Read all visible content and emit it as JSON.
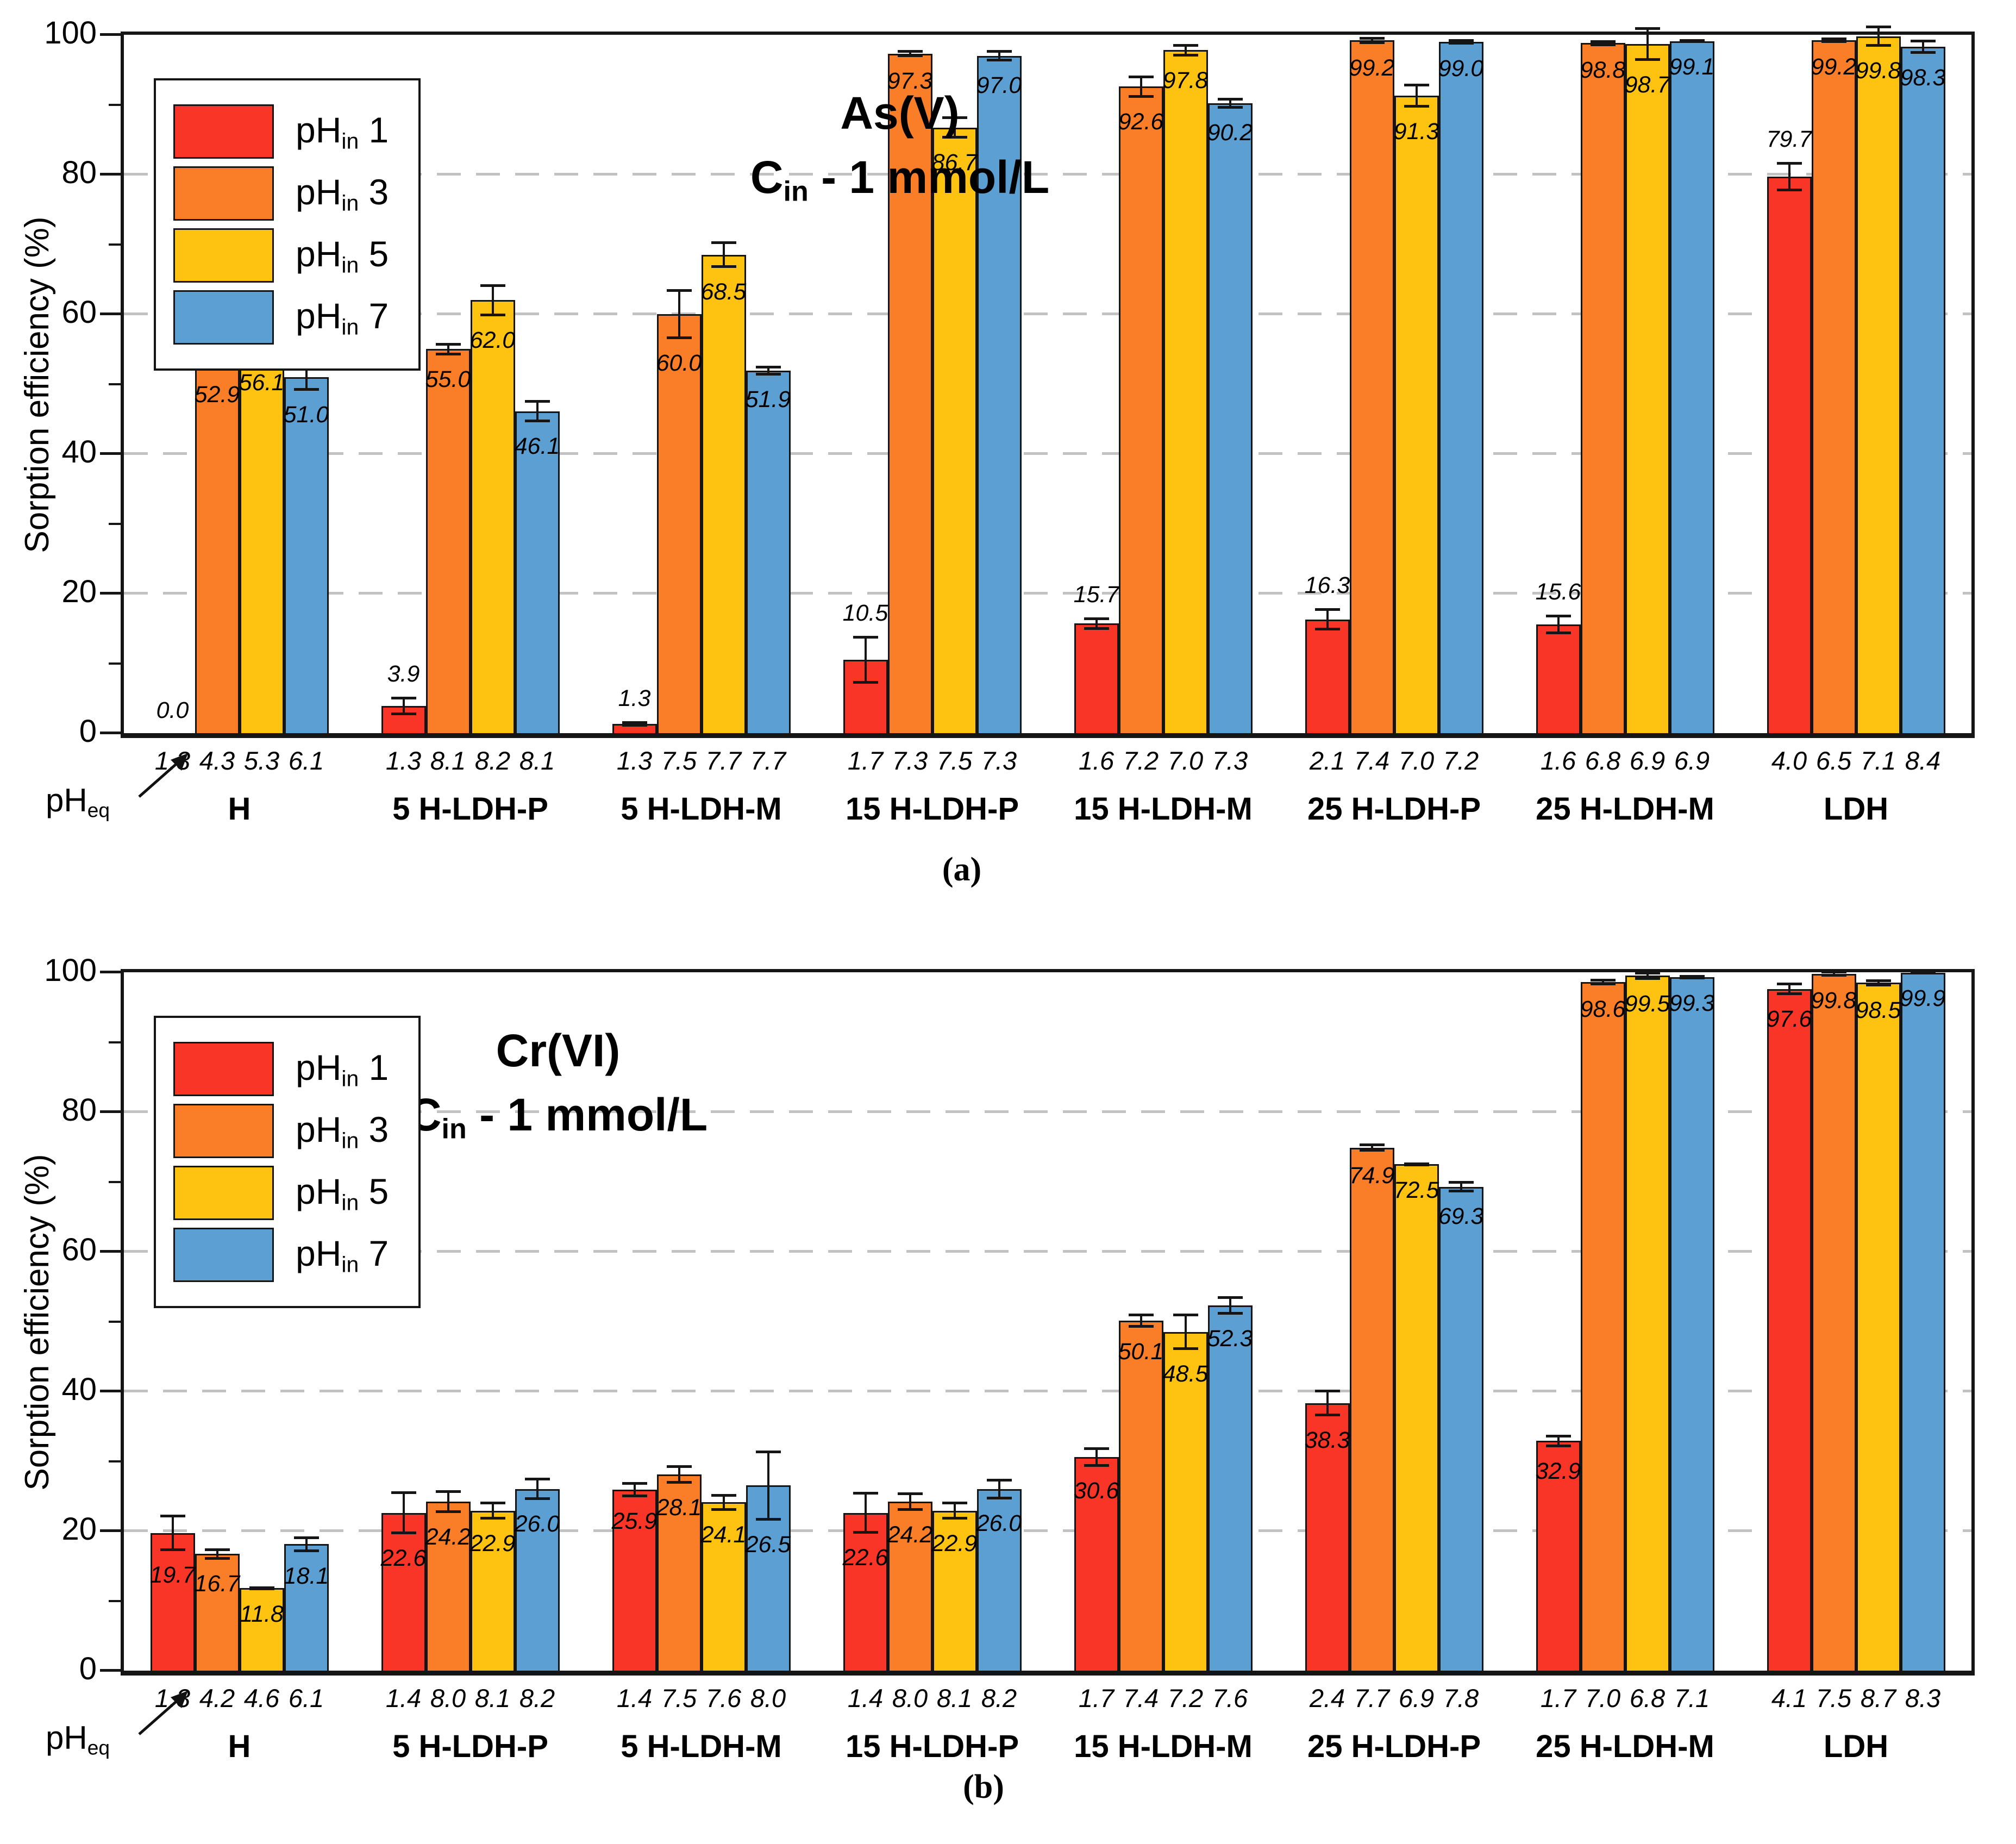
{
  "grid_color": "#C2C2C2",
  "axis_color": "#151515",
  "chart_data": [
    {
      "type": "bar",
      "panel_caption": "(a)",
      "title": "As(V)",
      "subtitle": {
        "pre": "C",
        "sub": "in",
        "post": " - 1 mmol/L"
      },
      "ylabel": "Sorption efficiency (%)",
      "ylim": [
        0,
        100
      ],
      "yticks": [
        0,
        20,
        40,
        60,
        80,
        100
      ],
      "gridlines": [
        20,
        40,
        60,
        80
      ],
      "legend_position": "top-left",
      "value_label_style": "italic",
      "first_series_labels": "above_bars",
      "x_annotation": {
        "pre": "pH",
        "sub": "eq"
      },
      "legend": [
        {
          "name": "pHin 1",
          "pre": "pH",
          "sub": "in",
          "post": " 1",
          "color": "#F93527"
        },
        {
          "name": "pHin 3",
          "pre": "pH",
          "sub": "in",
          "post": " 3",
          "color": "#FA7D28"
        },
        {
          "name": "pHin 5",
          "pre": "pH",
          "sub": "in",
          "post": " 5",
          "color": "#FEC211"
        },
        {
          "name": "pHin 7",
          "pre": "pH",
          "sub": "in",
          "post": " 7",
          "color": "#5B9FD3"
        }
      ],
      "categories": [
        "H",
        "5 H-LDH-P",
        "5 H-LDH-M",
        "15 H-LDH-P",
        "15 H-LDH-M",
        "25 H-LDH-P",
        "25 H-LDH-M",
        "LDH"
      ],
      "groups": [
        {
          "label": "H",
          "bars": [
            {
              "v": 0.0,
              "label": "0.0",
              "err": 0.0,
              "pheq": "1.3"
            },
            {
              "v": 52.9,
              "label": "52.9",
              "err": 1.0,
              "pheq": "4.3"
            },
            {
              "v": 56.1,
              "label": "56.1",
              "err": 2.5,
              "pheq": "5.3"
            },
            {
              "v": 51.0,
              "label": "51.0",
              "err": 2.0,
              "pheq": "6.1"
            }
          ]
        },
        {
          "label": "5 H-LDH-P",
          "bars": [
            {
              "v": 3.9,
              "label": "3.9",
              "err": 1.3,
              "pheq": "1.3"
            },
            {
              "v": 55.0,
              "label": "55.0",
              "err": 0.9,
              "pheq": "8.1"
            },
            {
              "v": 62.0,
              "label": "62.0",
              "err": 2.3,
              "pheq": "8.2"
            },
            {
              "v": 46.1,
              "label": "46.1",
              "err": 1.6,
              "pheq": "8.1"
            }
          ]
        },
        {
          "label": "5 H-LDH-M",
          "bars": [
            {
              "v": 1.3,
              "label": "1.3",
              "err": 0.4,
              "pheq": "1.3"
            },
            {
              "v": 60.0,
              "label": "60.0",
              "err": 3.6,
              "pheq": "7.5"
            },
            {
              "v": 68.5,
              "label": "68.5",
              "err": 1.9,
              "pheq": "7.7"
            },
            {
              "v": 51.9,
              "label": "51.9",
              "err": 0.7,
              "pheq": "7.7"
            }
          ]
        },
        {
          "label": "15 H-LDH-P",
          "bars": [
            {
              "v": 10.5,
              "label": "10.5",
              "err": 3.4,
              "pheq": "1.7"
            },
            {
              "v": 97.3,
              "label": "97.3",
              "err": 0.5,
              "pheq": "7.3"
            },
            {
              "v": 86.7,
              "label": "86.7",
              "err": 1.6,
              "pheq": "7.5"
            },
            {
              "v": 97.0,
              "label": "97.0",
              "err": 0.8,
              "pheq": "7.3"
            }
          ]
        },
        {
          "label": "15 H-LDH-M",
          "bars": [
            {
              "v": 15.7,
              "label": "15.7",
              "err": 0.9,
              "pheq": "1.6"
            },
            {
              "v": 92.6,
              "label": "92.6",
              "err": 1.6,
              "pheq": "7.2"
            },
            {
              "v": 97.8,
              "label": "97.8",
              "err": 0.9,
              "pheq": "7.0"
            },
            {
              "v": 90.2,
              "label": "90.2",
              "err": 0.8,
              "pheq": "7.3"
            }
          ]
        },
        {
          "label": "25 H-LDH-P",
          "bars": [
            {
              "v": 16.3,
              "label": "16.3",
              "err": 1.6,
              "pheq": "2.1"
            },
            {
              "v": 99.2,
              "label": "99.2",
              "err": 0.5,
              "pheq": "7.4"
            },
            {
              "v": 91.3,
              "label": "91.3",
              "err": 1.7,
              "pheq": "7.0"
            },
            {
              "v": 99.0,
              "label": "99.0",
              "err": 0.4,
              "pheq": "7.2"
            }
          ]
        },
        {
          "label": "25 H-LDH-M",
          "bars": [
            {
              "v": 15.6,
              "label": "15.6",
              "err": 1.4,
              "pheq": "1.6"
            },
            {
              "v": 98.8,
              "label": "98.8",
              "err": 0.4,
              "pheq": "6.8"
            },
            {
              "v": 98.7,
              "label": "98.7",
              "err": 2.4,
              "pheq": "6.9"
            },
            {
              "v": 99.1,
              "label": "99.1",
              "err": 0.3,
              "pheq": "6.9"
            }
          ]
        },
        {
          "label": "LDH",
          "bars": [
            {
              "v": 79.7,
              "label": "79.7",
              "err": 2.1,
              "pheq": "4.0"
            },
            {
              "v": 99.2,
              "label": "99.2",
              "err": 0.4,
              "pheq": "6.5"
            },
            {
              "v": 99.8,
              "label": "99.8",
              "err": 1.5,
              "pheq": "7.1"
            },
            {
              "v": 98.3,
              "label": "98.3",
              "err": 1.0,
              "pheq": "8.4"
            }
          ]
        }
      ]
    },
    {
      "type": "bar",
      "panel_caption": "(b)",
      "title": "Cr(VI)",
      "subtitle": {
        "pre": "C",
        "sub": "in",
        "post": " - 1 mmol/L"
      },
      "ylabel": "Sorption efficiency (%)",
      "ylim": [
        0,
        100
      ],
      "yticks": [
        0,
        20,
        40,
        60,
        80,
        100
      ],
      "gridlines": [
        20,
        40,
        60,
        80
      ],
      "legend_position": "top-left",
      "value_label_style": "italic",
      "first_series_labels": "inside_bars",
      "x_annotation": {
        "pre": "pH",
        "sub": "eq"
      },
      "legend": [
        {
          "name": "pHin 1",
          "pre": "pH",
          "sub": "in",
          "post": " 1",
          "color": "#F93527"
        },
        {
          "name": "pHin 3",
          "pre": "pH",
          "sub": "in",
          "post": " 3",
          "color": "#FA7D28"
        },
        {
          "name": "pHin 5",
          "pre": "pH",
          "sub": "in",
          "post": " 5",
          "color": "#FEC211"
        },
        {
          "name": "pHin 7",
          "pre": "pH",
          "sub": "in",
          "post": " 7",
          "color": "#5B9FD3"
        }
      ],
      "categories": [
        "H",
        "5 H-LDH-P",
        "5 H-LDH-M",
        "15 H-LDH-P",
        "15 H-LDH-M",
        "25 H-LDH-P",
        "25 H-LDH-M",
        "LDH"
      ],
      "groups": [
        {
          "label": "H",
          "bars": [
            {
              "v": 19.7,
              "label": "19.7",
              "err": 2.6,
              "pheq": "1.3"
            },
            {
              "v": 16.7,
              "label": "16.7",
              "err": 0.8,
              "pheq": "4.2"
            },
            {
              "v": 11.8,
              "label": "11.8",
              "err": 0.3,
              "pheq": "4.6"
            },
            {
              "v": 18.1,
              "label": "18.1",
              "err": 1.1,
              "pheq": "6.1"
            }
          ]
        },
        {
          "label": "5 H-LDH-P",
          "bars": [
            {
              "v": 22.6,
              "label": "22.6",
              "err": 3.1,
              "pheq": "1.4"
            },
            {
              "v": 24.2,
              "label": "24.2",
              "err": 1.6,
              "pheq": "8.0"
            },
            {
              "v": 22.9,
              "label": "22.9",
              "err": 1.3,
              "pheq": "8.1"
            },
            {
              "v": 26.0,
              "label": "26.0",
              "err": 1.6,
              "pheq": "8.2"
            }
          ]
        },
        {
          "label": "5 H-LDH-M",
          "bars": [
            {
              "v": 25.9,
              "label": "25.9",
              "err": 1.1,
              "pheq": "1.4"
            },
            {
              "v": 28.1,
              "label": "28.1",
              "err": 1.3,
              "pheq": "7.5"
            },
            {
              "v": 24.1,
              "label": "24.1",
              "err": 1.2,
              "pheq": "7.6"
            },
            {
              "v": 26.5,
              "label": "26.5",
              "err": 5.0,
              "pheq": "8.0"
            }
          ]
        },
        {
          "label": "15 H-LDH-P",
          "bars": [
            {
              "v": 22.6,
              "label": "22.6",
              "err": 3.0,
              "pheq": "1.4"
            },
            {
              "v": 24.2,
              "label": "24.2",
              "err": 1.3,
              "pheq": "8.0"
            },
            {
              "v": 22.9,
              "label": "22.9",
              "err": 1.3,
              "pheq": "8.1"
            },
            {
              "v": 26.0,
              "label": "26.0",
              "err": 1.5,
              "pheq": "8.2"
            }
          ]
        },
        {
          "label": "15 H-LDH-M",
          "bars": [
            {
              "v": 30.6,
              "label": "30.6",
              "err": 1.4,
              "pheq": "1.7"
            },
            {
              "v": 50.1,
              "label": "50.1",
              "err": 1.0,
              "pheq": "7.4"
            },
            {
              "v": 48.5,
              "label": "48.5",
              "err": 2.6,
              "pheq": "7.2"
            },
            {
              "v": 52.3,
              "label": "52.3",
              "err": 1.3,
              "pheq": "7.6"
            }
          ]
        },
        {
          "label": "25 H-LDH-P",
          "bars": [
            {
              "v": 38.3,
              "label": "38.3",
              "err": 1.9,
              "pheq": "2.4"
            },
            {
              "v": 74.9,
              "label": "74.9",
              "err": 0.6,
              "pheq": "7.7"
            },
            {
              "v": 72.5,
              "label": "72.5",
              "err": 0.3,
              "pheq": "6.9"
            },
            {
              "v": 69.3,
              "label": "69.3",
              "err": 0.8,
              "pheq": "7.8"
            }
          ]
        },
        {
          "label": "25 H-LDH-M",
          "bars": [
            {
              "v": 32.9,
              "label": "32.9",
              "err": 0.9,
              "pheq": "1.7"
            },
            {
              "v": 98.6,
              "label": "98.6",
              "err": 0.5,
              "pheq": "7.0"
            },
            {
              "v": 99.5,
              "label": "99.5",
              "err": 0.6,
              "pheq": "6.8"
            },
            {
              "v": 99.3,
              "label": "99.3",
              "err": 0.3,
              "pheq": "7.1"
            }
          ]
        },
        {
          "label": "LDH",
          "bars": [
            {
              "v": 97.6,
              "label": "97.6",
              "err": 0.9,
              "pheq": "4.1"
            },
            {
              "v": 99.8,
              "label": "99.8",
              "err": 0.4,
              "pheq": "7.5"
            },
            {
              "v": 98.5,
              "label": "98.5",
              "err": 0.5,
              "pheq": "8.7"
            },
            {
              "v": 99.9,
              "label": "99.9",
              "err": 0.2,
              "pheq": "8.3"
            }
          ]
        }
      ]
    }
  ]
}
